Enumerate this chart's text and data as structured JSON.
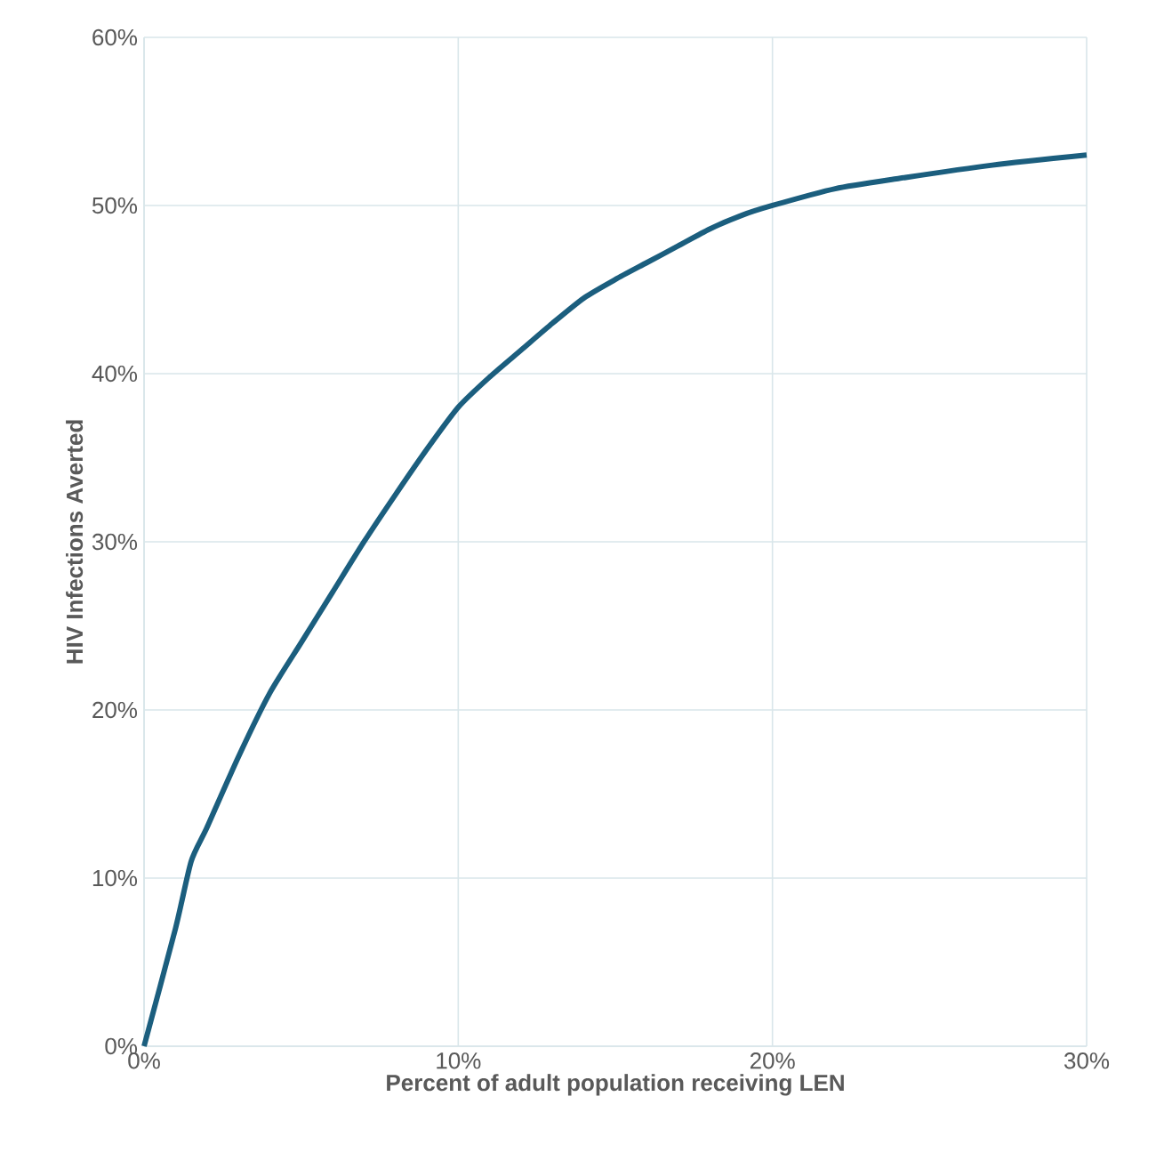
{
  "chart_data": {
    "type": "line",
    "xlabel": "Percent of adult population receiving LEN",
    "ylabel": "HIV Infections Averted",
    "xlim": [
      0,
      30
    ],
    "ylim": [
      0,
      60
    ],
    "xticks": [
      {
        "value": 0,
        "label": "0%"
      },
      {
        "value": 10,
        "label": "10%"
      },
      {
        "value": 20,
        "label": "20%"
      },
      {
        "value": 30,
        "label": "30%"
      }
    ],
    "yticks": [
      {
        "value": 0,
        "label": "0%"
      },
      {
        "value": 10,
        "label": "10%"
      },
      {
        "value": 20,
        "label": "20%"
      },
      {
        "value": 30,
        "label": "30%"
      },
      {
        "value": 40,
        "label": "40%"
      },
      {
        "value": 50,
        "label": "50%"
      },
      {
        "value": 60,
        "label": "60%"
      }
    ],
    "grid": true,
    "line_style": "solid",
    "marker": "none",
    "series": [
      {
        "color": "#1b5e7e",
        "x": [
          0,
          1,
          1.5,
          2,
          3,
          4,
          5,
          6,
          7,
          8,
          9,
          10,
          11,
          12,
          13,
          14,
          15,
          16,
          17,
          18,
          19,
          20,
          22,
          24,
          27,
          30
        ],
        "values": [
          0,
          7,
          11,
          13,
          17.2,
          21,
          24,
          27,
          30,
          32.8,
          35.5,
          38,
          39.8,
          41.4,
          43,
          44.5,
          45.6,
          46.6,
          47.6,
          48.6,
          49.4,
          50,
          51,
          51.6,
          52.4,
          53
        ]
      }
    ]
  }
}
